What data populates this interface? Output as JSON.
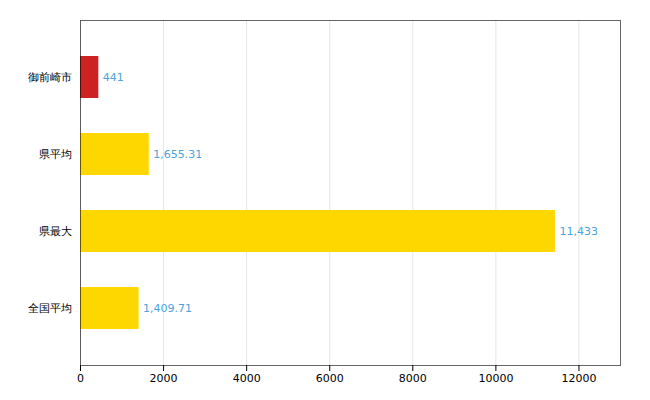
{
  "chart_data": {
    "type": "bar",
    "orientation": "horizontal",
    "categories": [
      "全国平均",
      "県最大",
      "県平均",
      "御前崎市"
    ],
    "values": [
      1409.71,
      11433,
      1655.31,
      441
    ],
    "value_labels": [
      "1,409.71",
      "11,433",
      "1,655.31",
      "441"
    ],
    "colors": [
      "#FFD700",
      "#FFD700",
      "#FFD700",
      "#CC2222"
    ],
    "data_labels": true,
    "xlim": [
      0,
      13000
    ],
    "xticks": [
      0,
      2000,
      4000,
      6000,
      8000,
      10000,
      12000
    ],
    "grid": true
  }
}
